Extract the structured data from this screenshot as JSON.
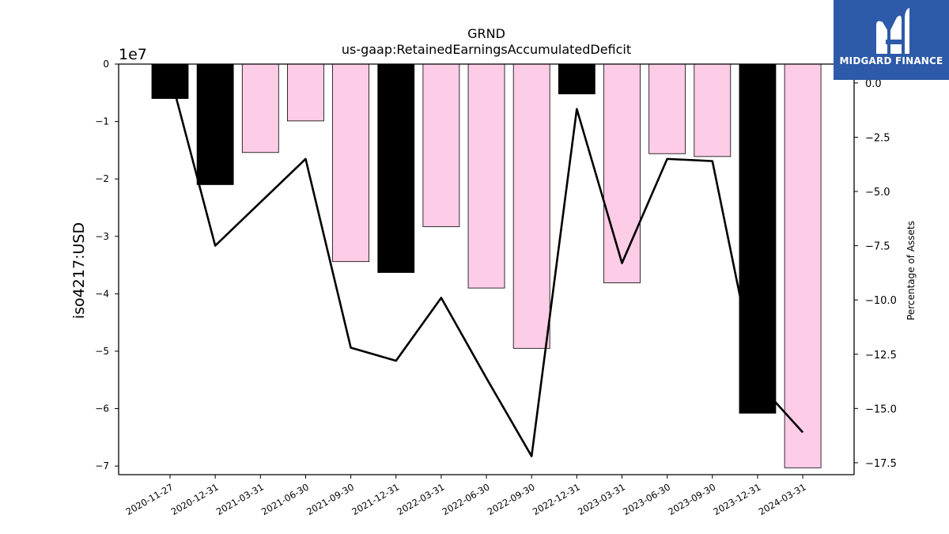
{
  "chart_data": {
    "type": "bar",
    "title": "GRND",
    "subtitle": "us-gaap:RetainedEarningsAccumulatedDeficit",
    "ylabel": "iso4217:USD",
    "y_offset_label": "1e7",
    "y2label": "Percentage of Assets",
    "categories": [
      "2020-11-27",
      "2020-12-31",
      "2021-03-31",
      "2021-06-30",
      "2021-09-30",
      "2021-12-31",
      "2022-03-31",
      "2022-06-30",
      "2022-09-30",
      "2022-12-31",
      "2023-03-31",
      "2023-06-30",
      "2023-09-30",
      "2023-12-31",
      "2024-03-31"
    ],
    "series": [
      {
        "type": "bar",
        "axis": "left",
        "values": [
          -6000000,
          -21000000,
          -15400000,
          -9900000,
          -34400000,
          -36300000,
          -28300000,
          -39000000,
          -49500000,
          -5200000,
          -38100000,
          -15600000,
          -16100000,
          -60800000,
          -70300000
        ],
        "colors": [
          "#000000",
          "#000000",
          "#fdcce6",
          "#fdcce6",
          "#fdcce6",
          "#000000",
          "#fdcce6",
          "#fdcce6",
          "#fdcce6",
          "#000000",
          "#fdcce6",
          "#fdcce6",
          "#fdcce6",
          "#000000",
          "#fdcce6"
        ]
      },
      {
        "type": "line",
        "axis": "right",
        "color": "#000000",
        "values": [
          0.4,
          -7.5,
          -5.5,
          -3.5,
          -12.2,
          -12.8,
          -9.9,
          -13.6,
          -17.2,
          -1.2,
          -8.3,
          -3.5,
          -3.6,
          -13.8,
          -16.1
        ]
      }
    ],
    "y_ticks": [
      0,
      -10000000,
      -20000000,
      -30000000,
      -40000000,
      -50000000,
      -60000000,
      -70000000
    ],
    "y_tick_labels": [
      "0",
      "−1",
      "−2",
      "−3",
      "−4",
      "−5",
      "−6",
      "−7"
    ],
    "ylim": [
      -71500000,
      0
    ],
    "y2_ticks": [
      0,
      -2.5,
      -5,
      -7.5,
      -10,
      -12.5,
      -15,
      -17.5
    ],
    "y2_tick_labels": [
      "0.0",
      "−2.5",
      "−5.0",
      "−7.5",
      "−10.0",
      "−12.5",
      "−15.0",
      "−17.5"
    ],
    "y2lim": [
      -18.05,
      0.87
    ],
    "grid": false,
    "legend": "none"
  },
  "logo": {
    "name": "MIDGARD FINANCE",
    "background": "#2d5aa9",
    "icon": "midgard-finance-logo-icon"
  }
}
